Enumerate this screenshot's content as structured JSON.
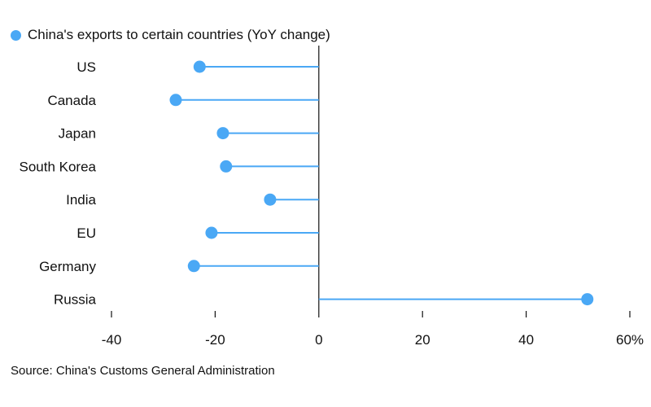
{
  "chart_data": {
    "type": "lollipop",
    "legend": "China's exports to certain countries (YoY change)",
    "categories": [
      "US",
      "Canada",
      "Japan",
      "South Korea",
      "India",
      "EU",
      "Germany",
      "Russia"
    ],
    "values": [
      -23.0,
      -27.6,
      -18.5,
      -17.9,
      -9.4,
      -20.7,
      -24.1,
      51.8
    ],
    "xlim": [
      -40,
      60
    ],
    "xticks": [
      -40,
      -20,
      0,
      20,
      40,
      60
    ],
    "xtick_labels": [
      "-40",
      "-20",
      "0",
      "20",
      "40",
      "60%"
    ],
    "legend_position": "top-left",
    "grid": false
  },
  "source": "Source: China's Customs General Administration",
  "colors": {
    "series": "#4aa8f5",
    "axis": "#111111",
    "text": "#111111"
  }
}
